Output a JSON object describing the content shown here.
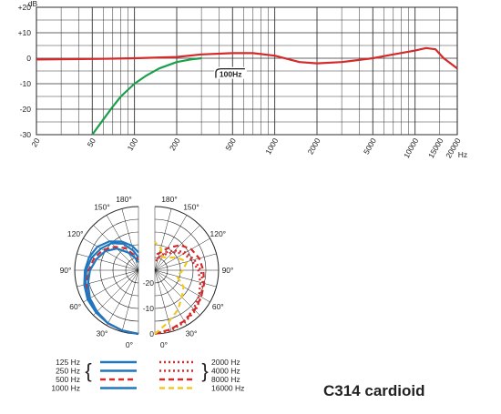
{
  "chart_data": [
    {
      "type": "line",
      "title": "",
      "xlabel": "Hz",
      "ylabel": "dB",
      "xscale": "log",
      "xlim": [
        20,
        20000
      ],
      "ylim": [
        -30,
        20
      ],
      "x_tick_labels": [
        "20",
        "50",
        "100",
        "200",
        "500",
        "1000",
        "2000",
        "5000",
        "10000",
        "15000",
        "20000"
      ],
      "y_tick_labels": [
        "+20",
        "+10",
        "0",
        "-10",
        "-20",
        "-30"
      ],
      "grid": true,
      "annotations": [
        "100Hz"
      ],
      "series": [
        {
          "color": "#d42a2a",
          "x": [
            20,
            50,
            100,
            200,
            300,
            500,
            700,
            1000,
            1500,
            2000,
            3000,
            5000,
            7000,
            10000,
            12000,
            14000,
            16000,
            20000
          ],
          "y": [
            -0.5,
            -0.3,
            0,
            0.5,
            1.5,
            2,
            2,
            1,
            -1.5,
            -2,
            -1.5,
            0,
            1.5,
            3,
            4,
            3.5,
            0,
            -4
          ]
        },
        {
          "color": "#1aa04a",
          "x": [
            50,
            60,
            70,
            80,
            100,
            120,
            150,
            200,
            250,
            300
          ],
          "y": [
            -30,
            -24,
            -19,
            -15,
            -10,
            -7,
            -4,
            -1.5,
            -0.5,
            0
          ]
        }
      ]
    },
    {
      "type": "polar",
      "angle_labels_left": [
        "180°",
        "150°",
        "120°",
        "90°",
        "60°",
        "30°",
        "0°"
      ],
      "angle_labels_right": [
        "180°",
        "150°",
        "120°",
        "90°",
        "60°",
        "30°",
        "0°"
      ],
      "radial_labels": [
        "-20",
        "-10",
        "0"
      ],
      "angles_deg": [
        0,
        15,
        30,
        45,
        60,
        75,
        90,
        105,
        120,
        135,
        150,
        165,
        180
      ],
      "rlim": [
        -25,
        0
      ],
      "left_half": {
        "series": [
          {
            "name": "125 Hz",
            "color": "#1f77c0",
            "dash": "solid",
            "values": [
              0,
              -0.5,
              -1,
              -1.5,
              -2,
              -3,
              -4,
              -5,
              -6.5,
              -9,
              -12,
              -15,
              -18
            ]
          },
          {
            "name": "250 Hz",
            "color": "#1f77c0",
            "dash": "solid",
            "values": [
              0,
              -0.5,
              -1,
              -1.5,
              -2.5,
              -3.5,
              -4.5,
              -6,
              -8,
              -10,
              -13,
              -17,
              -20
            ]
          },
          {
            "name": "500 Hz",
            "color": "#d42a2a",
            "dash": "dash",
            "values": [
              0,
              -0.5,
              -1,
              -2,
              -3,
              -4,
              -5.5,
              -7,
              -9,
              -12,
              -15,
              -19,
              -21
            ]
          },
          {
            "name": "1000 Hz",
            "color": "#1f77c0",
            "dash": "solid",
            "values": [
              0,
              -0.5,
              -1,
              -2,
              -3,
              -4.5,
              -6,
              -8,
              -10,
              -13,
              -17,
              -20,
              -22
            ]
          }
        ]
      },
      "right_half": {
        "series": [
          {
            "name": "2000 Hz",
            "color": "#d42a2a",
            "dash": "dot",
            "values": [
              0,
              -0.5,
              -1.5,
              -2.5,
              -4,
              -5.5,
              -7,
              -9,
              -11,
              -14,
              -17,
              -20,
              -22
            ]
          },
          {
            "name": "4000 Hz",
            "color": "#d42a2a",
            "dash": "dot",
            "values": [
              0,
              -1,
              -2,
              -3.5,
              -5,
              -6.5,
              -8,
              -10,
              -12,
              -15,
              -18,
              -20,
              -21
            ]
          },
          {
            "name": "8000 Hz",
            "color": "#d42a2a",
            "dash": "dash",
            "values": [
              0,
              -1,
              -2,
              -3,
              -4,
              -5,
              -6,
              -7,
              -8.5,
              -11,
              -15,
              -18,
              -19
            ]
          },
          {
            "name": "16000 Hz",
            "color": "#f0c820",
            "dash": "dash",
            "values": [
              0,
              -4,
              -7,
              -10,
              -12,
              -16,
              -14,
              -12,
              -15,
              -18,
              -19,
              -16,
              -14
            ]
          }
        ]
      }
    }
  ],
  "title_text": "C314 cardioid",
  "legend_left": [
    {
      "label": "125 Hz",
      "color": "#1f77c0",
      "dash": "solid"
    },
    {
      "label": "250 Hz",
      "color": "#1f77c0",
      "dash": "solid"
    },
    {
      "label": "500 Hz",
      "color": "#d42a2a",
      "dash": "dash"
    },
    {
      "label": "1000 Hz",
      "color": "#1f77c0",
      "dash": "solid"
    }
  ],
  "legend_right": [
    {
      "label": "2000 Hz",
      "color": "#d42a2a",
      "dash": "dot"
    },
    {
      "label": "4000 Hz",
      "color": "#d42a2a",
      "dash": "dot"
    },
    {
      "label": "8000 Hz",
      "color": "#d42a2a",
      "dash": "dash"
    },
    {
      "label": "16000 Hz",
      "color": "#f0c820",
      "dash": "dash"
    }
  ]
}
